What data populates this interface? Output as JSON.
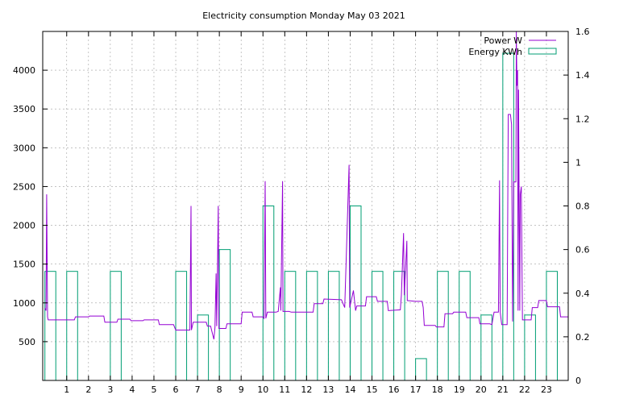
{
  "chart_data": {
    "type": "line",
    "title": "Electricity consumption Monday May 03 2021",
    "grid": true,
    "legend_placement": "top-right",
    "x_ticks": [
      1,
      2,
      3,
      4,
      5,
      6,
      7,
      8,
      9,
      10,
      11,
      12,
      13,
      14,
      15,
      16,
      17,
      18,
      19,
      20,
      21,
      22,
      23
    ],
    "xlim": [
      -0.1,
      24.0
    ],
    "y_left": {
      "ticks": [
        500,
        1000,
        1500,
        2000,
        2500,
        3000,
        3500,
        4000
      ],
      "lim": [
        0,
        4500
      ]
    },
    "y_right": {
      "ticks": [
        "0",
        "0.2",
        "0.4",
        "0.6",
        "0.8",
        "1",
        "1.2",
        "1.4",
        "1.6"
      ],
      "lim": [
        0,
        1.6
      ]
    },
    "series": [
      {
        "name": "Power W",
        "color": "#9400d3",
        "axis": "left",
        "style": "line",
        "points": [
          [
            0.0,
            930
          ],
          [
            0.05,
            900
          ],
          [
            0.08,
            2400
          ],
          [
            0.12,
            820
          ],
          [
            0.15,
            780
          ],
          [
            0.7,
            780
          ],
          [
            0.8,
            780
          ],
          [
            1.35,
            780
          ],
          [
            1.4,
            820
          ],
          [
            2.0,
            820
          ],
          [
            2.05,
            830
          ],
          [
            2.7,
            830
          ],
          [
            2.75,
            750
          ],
          [
            3.3,
            750
          ],
          [
            3.35,
            790
          ],
          [
            3.9,
            790
          ],
          [
            3.95,
            770
          ],
          [
            4.5,
            770
          ],
          [
            4.55,
            780
          ],
          [
            5.2,
            780
          ],
          [
            5.25,
            720
          ],
          [
            5.9,
            720
          ],
          [
            6.0,
            650
          ],
          [
            6.65,
            650
          ],
          [
            6.7,
            2250
          ],
          [
            6.72,
            650
          ],
          [
            6.8,
            750
          ],
          [
            7.4,
            750
          ],
          [
            7.45,
            700
          ],
          [
            7.6,
            700
          ],
          [
            7.65,
            640
          ],
          [
            7.75,
            530
          ],
          [
            7.8,
            680
          ],
          [
            7.85,
            1380
          ],
          [
            7.88,
            700
          ],
          [
            7.95,
            2250
          ],
          [
            7.98,
            670
          ],
          [
            8.3,
            670
          ],
          [
            8.35,
            730
          ],
          [
            9.0,
            730
          ],
          [
            9.05,
            880
          ],
          [
            9.5,
            880
          ],
          [
            9.55,
            820
          ],
          [
            10.0,
            820
          ],
          [
            10.05,
            800
          ],
          [
            10.1,
            2570
          ],
          [
            10.13,
            800
          ],
          [
            10.2,
            880
          ],
          [
            10.6,
            880
          ],
          [
            10.7,
            890
          ],
          [
            10.8,
            1200
          ],
          [
            10.82,
            900
          ],
          [
            10.9,
            2570
          ],
          [
            10.92,
            890
          ],
          [
            11.2,
            890
          ],
          [
            11.3,
            880
          ],
          [
            11.9,
            880
          ],
          [
            12.3,
            880
          ],
          [
            12.35,
            990
          ],
          [
            12.75,
            990
          ],
          [
            12.8,
            1050
          ],
          [
            13.6,
            1040
          ],
          [
            13.75,
            940
          ],
          [
            13.95,
            2780
          ],
          [
            13.98,
            940
          ],
          [
            14.15,
            1160
          ],
          [
            14.25,
            900
          ],
          [
            14.3,
            960
          ],
          [
            14.7,
            960
          ],
          [
            14.75,
            1080
          ],
          [
            15.2,
            1080
          ],
          [
            15.25,
            1020
          ],
          [
            15.7,
            1020
          ],
          [
            15.75,
            900
          ],
          [
            16.3,
            910
          ],
          [
            16.35,
            1100
          ],
          [
            16.45,
            1900
          ],
          [
            16.48,
            1100
          ],
          [
            16.6,
            1800
          ],
          [
            16.62,
            1030
          ],
          [
            17.0,
            1020
          ],
          [
            17.3,
            1020
          ],
          [
            17.35,
            940
          ],
          [
            17.4,
            710
          ],
          [
            17.9,
            710
          ],
          [
            17.95,
            690
          ],
          [
            18.3,
            690
          ],
          [
            18.35,
            860
          ],
          [
            18.7,
            860
          ],
          [
            18.75,
            880
          ],
          [
            19.3,
            880
          ],
          [
            19.35,
            810
          ],
          [
            19.9,
            810
          ],
          [
            19.95,
            730
          ],
          [
            20.4,
            730
          ],
          [
            20.5,
            720
          ],
          [
            20.6,
            880
          ],
          [
            20.8,
            880
          ],
          [
            20.85,
            2580
          ],
          [
            20.88,
            880
          ],
          [
            20.95,
            720
          ],
          [
            21.2,
            720
          ],
          [
            21.25,
            3430
          ],
          [
            21.35,
            3430
          ],
          [
            21.4,
            3300
          ],
          [
            21.45,
            760
          ],
          [
            21.5,
            2560
          ],
          [
            21.6,
            2560
          ],
          [
            21.62,
            4500
          ],
          [
            21.65,
            3800
          ],
          [
            21.68,
            4000
          ],
          [
            21.7,
            900
          ],
          [
            21.72,
            3750
          ],
          [
            21.75,
            2300
          ],
          [
            21.78,
            900
          ],
          [
            21.8,
            2400
          ],
          [
            21.85,
            2500
          ],
          [
            21.9,
            780
          ],
          [
            22.3,
            780
          ],
          [
            22.35,
            940
          ],
          [
            22.6,
            940
          ],
          [
            22.65,
            1030
          ],
          [
            23.0,
            1030
          ],
          [
            23.05,
            950
          ],
          [
            23.6,
            950
          ],
          [
            23.65,
            820
          ],
          [
            24.0,
            820
          ]
        ]
      },
      {
        "name": "Energy KWh",
        "color": "#009e73",
        "axis": "right",
        "style": "bars",
        "bar_width": 0.5,
        "points": [
          [
            0.0,
            0.5
          ],
          [
            1.0,
            0.5
          ],
          [
            3.0,
            0.5
          ],
          [
            6.0,
            0.5
          ],
          [
            7.0,
            0.3
          ],
          [
            8.0,
            0.6
          ],
          [
            10.0,
            0.8
          ],
          [
            11.0,
            0.5
          ],
          [
            12.0,
            0.5
          ],
          [
            13.0,
            0.5
          ],
          [
            14.0,
            0.8
          ],
          [
            15.0,
            0.5
          ],
          [
            16.0,
            0.5
          ],
          [
            17.0,
            0.1
          ],
          [
            18.0,
            0.5
          ],
          [
            19.0,
            0.5
          ],
          [
            20.0,
            0.3
          ],
          [
            21.0,
            1.5
          ],
          [
            22.0,
            0.3
          ],
          [
            23.0,
            0.5
          ]
        ]
      }
    ]
  }
}
